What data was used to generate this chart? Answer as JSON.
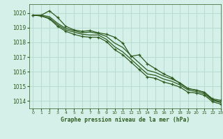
{
  "title": "Graphe pression niveau de la mer (hPa)",
  "bg_color": "#d5f0e8",
  "grid_color": "#b8ddd0",
  "line_color": "#2d5a1e",
  "xlim": [
    -0.5,
    23
  ],
  "ylim": [
    1013.5,
    1020.6
  ],
  "yticks": [
    1014,
    1015,
    1016,
    1017,
    1018,
    1019,
    1020
  ],
  "xticks": [
    0,
    1,
    2,
    3,
    4,
    5,
    6,
    7,
    8,
    9,
    10,
    11,
    12,
    13,
    14,
    15,
    16,
    17,
    18,
    19,
    20,
    21,
    22,
    23
  ],
  "series": [
    [
      1019.85,
      1019.85,
      1020.15,
      1019.7,
      1019.1,
      1018.85,
      1018.75,
      1018.8,
      1018.65,
      1018.55,
      1018.35,
      1017.95,
      1017.05,
      1017.15,
      1016.55,
      1016.2,
      1015.85,
      1015.6,
      1015.2,
      1014.85,
      1014.75,
      1014.6,
      1014.15,
      1014.05
    ],
    [
      1019.85,
      1019.85,
      1019.75,
      1019.3,
      1018.95,
      1018.8,
      1018.65,
      1018.7,
      1018.6,
      1018.4,
      1017.95,
      1017.65,
      1017.1,
      1016.6,
      1016.1,
      1015.95,
      1015.7,
      1015.5,
      1015.25,
      1014.85,
      1014.75,
      1014.6,
      1014.1,
      1013.95
    ],
    [
      1019.85,
      1019.8,
      1019.65,
      1019.2,
      1018.85,
      1018.7,
      1018.55,
      1018.5,
      1018.5,
      1018.2,
      1017.7,
      1017.35,
      1016.85,
      1016.35,
      1015.85,
      1015.75,
      1015.5,
      1015.35,
      1015.1,
      1014.75,
      1014.65,
      1014.5,
      1014.05,
      1013.9
    ],
    [
      1019.85,
      1019.8,
      1019.6,
      1019.1,
      1018.75,
      1018.55,
      1018.4,
      1018.35,
      1018.35,
      1018.05,
      1017.5,
      1017.15,
      1016.65,
      1016.15,
      1015.65,
      1015.55,
      1015.3,
      1015.15,
      1014.95,
      1014.6,
      1014.55,
      1014.4,
      1013.95,
      1013.8
    ]
  ]
}
